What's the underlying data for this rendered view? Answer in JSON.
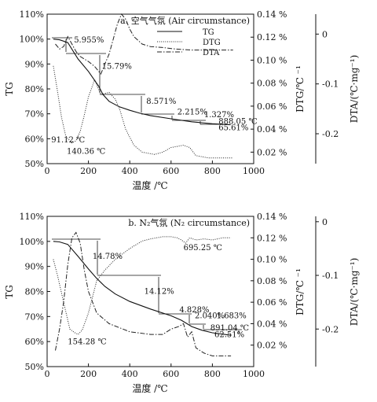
{
  "chart_data": [
    {
      "type": "line",
      "title": "a. 空气气氛 (Air circumstance)",
      "xlabel": "温度 /℃",
      "ylabel_left": "TG",
      "ylabel_right1": "DTG/℃ ⁻¹",
      "ylabel_right2": "DTA/(℃·mg⁻¹)",
      "xlim": [
        0,
        1000
      ],
      "x_ticks": [
        "0",
        "200",
        "400",
        "600",
        "800",
        "1000"
      ],
      "tg_ylim": [
        50,
        110
      ],
      "tg_ticks": [
        "50%",
        "60%",
        "70%",
        "80%",
        "90%",
        "100%",
        "110%"
      ],
      "dtg_ylim": [
        0.01,
        0.14
      ],
      "dtg_ticks": [
        "0.02 %",
        "0.04 %",
        "0.06 %",
        "0.08 %",
        "0.10 %",
        "0.12 %",
        "0.14 %"
      ],
      "dta_ylim": [
        -0.26,
        0.04
      ],
      "dta_ticks": [
        "0",
        "-0.1",
        "-0.2"
      ],
      "legend": [
        "TG",
        "DTG",
        "DTA"
      ],
      "legend_position": "top-right",
      "series": [
        {
          "name": "TG",
          "x": [
            30,
            60,
            100,
            150,
            200,
            250,
            270,
            300,
            350,
            400,
            450,
            500,
            600,
            700,
            800,
            888
          ],
          "y": [
            100,
            99.7,
            98.6,
            92.0,
            87.0,
            81.0,
            77.8,
            75.0,
            72.8,
            71.4,
            70.2,
            69.3,
            68.0,
            66.8,
            66.0,
            65.6
          ]
        },
        {
          "name": "DTG",
          "x": [
            30,
            50,
            70,
            90,
            100,
            120,
            140,
            160,
            180,
            200,
            230,
            260,
            300,
            330,
            350,
            380,
            420,
            460,
            520,
            560,
            600,
            630,
            660,
            690,
            720,
            780,
            850,
            900
          ],
          "y": [
            0.095,
            0.073,
            0.05,
            0.034,
            0.032,
            0.028,
            0.03,
            0.038,
            0.052,
            0.068,
            0.083,
            0.07,
            0.072,
            0.066,
            0.058,
            0.04,
            0.026,
            0.02,
            0.018,
            0.02,
            0.024,
            0.025,
            0.026,
            0.024,
            0.017,
            0.015,
            0.015,
            0.015
          ]
        },
        {
          "name": "DTA",
          "x": [
            40,
            60,
            80,
            100,
            120,
            140,
            160,
            180,
            200,
            230,
            260,
            280,
            300,
            320,
            340,
            360,
            380,
            400,
            420,
            460,
            500,
            560,
            620,
            700,
            800,
            900
          ],
          "y": [
            -0.02,
            -0.03,
            -0.025,
            -0.005,
            -0.02,
            -0.035,
            -0.045,
            -0.05,
            -0.055,
            -0.065,
            -0.08,
            -0.06,
            -0.04,
            -0.01,
            0.02,
            0.04,
            0.03,
            0.01,
            -0.005,
            -0.02,
            -0.025,
            -0.027,
            -0.03,
            -0.032,
            -0.032,
            -0.032
          ]
        }
      ],
      "annotations": [
        {
          "text": "5.955%",
          "x": 130,
          "y": 98.6
        },
        {
          "text": "15.79%",
          "x": 265,
          "y": 88
        },
        {
          "text": "8.571%",
          "x": 480,
          "y": 74
        },
        {
          "text": "2.215%",
          "x": 630,
          "y": 69.8
        },
        {
          "text": "1.327%",
          "x": 760,
          "y": 68.7
        },
        {
          "text": "888.05 ℃",
          "x": 830,
          "y": 66
        },
        {
          "text": "65.61%",
          "x": 830,
          "y": 63.5
        },
        {
          "text": "91.12 ℃",
          "x": 20,
          "y": 58.5
        },
        {
          "text": "140.36 ℃",
          "x": 95,
          "y": 54
        }
      ]
    },
    {
      "type": "line",
      "title": "b. N₂气氛 (N₂ circumstance)",
      "xlabel": "温度 /℃",
      "ylabel_left": "TG",
      "ylabel_right1": "DTG/℃ ⁻¹",
      "ylabel_right2": "DTA/(℃·mg⁻¹)",
      "xlim": [
        0,
        1000
      ],
      "x_ticks": [
        "0",
        "200",
        "400",
        "600",
        "800",
        "1000"
      ],
      "tg_ylim": [
        50,
        110
      ],
      "tg_ticks": [
        "50%",
        "60%",
        "70%",
        "80%",
        "90%",
        "100%",
        "110%"
      ],
      "dtg_ylim": [
        0.0,
        0.14
      ],
      "dtg_ticks": [
        "0.02 %",
        "0.04 %",
        "0.06 %",
        "0.08 %",
        "0.10 %",
        "0.12 %",
        "0.14 %"
      ],
      "dta_ylim": [
        -0.27,
        0.01
      ],
      "dta_ticks": [
        "0",
        "-0.1",
        "-0.2"
      ],
      "series": [
        {
          "name": "TG",
          "x": [
            30,
            60,
            100,
            150,
            200,
            240,
            280,
            330,
            400,
            500,
            600,
            650,
            700,
            750,
            800,
            891
          ],
          "y": [
            100,
            99.8,
            98.8,
            94.0,
            89.0,
            85.2,
            82.0,
            79.0,
            76.0,
            73.0,
            70.3,
            68.5,
            66.0,
            64.5,
            63.5,
            62.5
          ]
        },
        {
          "name": "DTG",
          "x": [
            30,
            50,
            80,
            110,
            130,
            150,
            170,
            200,
            240,
            280,
            330,
            400,
            460,
            500,
            530,
            560,
            600,
            630,
            650,
            670,
            690,
            720,
            760,
            800,
            850,
            890
          ],
          "y": [
            0.1,
            0.085,
            0.06,
            0.035,
            0.032,
            0.03,
            0.034,
            0.05,
            0.08,
            0.09,
            0.1,
            0.11,
            0.117,
            0.119,
            0.12,
            0.121,
            0.121,
            0.12,
            0.118,
            0.115,
            0.12,
            0.118,
            0.119,
            0.118,
            0.12,
            0.12
          ]
        },
        {
          "name": "DTA",
          "x": [
            40,
            60,
            80,
            100,
            120,
            140,
            160,
            180,
            200,
            240,
            300,
            400,
            500,
            560,
            600,
            640,
            660,
            680,
            700,
            720,
            760,
            800,
            850,
            890
          ],
          "y": [
            -0.24,
            -0.2,
            -0.15,
            -0.08,
            -0.03,
            -0.02,
            -0.04,
            -0.09,
            -0.13,
            -0.17,
            -0.19,
            -0.205,
            -0.21,
            -0.21,
            -0.2,
            -0.195,
            -0.19,
            -0.215,
            -0.205,
            -0.235,
            -0.245,
            -0.25,
            -0.25,
            -0.25
          ]
        }
      ],
      "annotations": [
        {
          "text": "695.25 ℃",
          "x": 660,
          "y": 96.5
        },
        {
          "text": "14.78%",
          "x": 220,
          "y": 93
        },
        {
          "text": "14.12%",
          "x": 470,
          "y": 79
        },
        {
          "text": "4.828%",
          "x": 640,
          "y": 71.6
        },
        {
          "text": "2.040%",
          "x": 715,
          "y": 69.3
        },
        {
          "text": "1.683%",
          "x": 820,
          "y": 69.3
        },
        {
          "text": "891.04 ℃",
          "x": 790,
          "y": 64.5
        },
        {
          "text": "62.51%",
          "x": 810,
          "y": 61.8
        },
        {
          "text": "154.28 ℃",
          "x": 100,
          "y": 59
        }
      ]
    }
  ]
}
